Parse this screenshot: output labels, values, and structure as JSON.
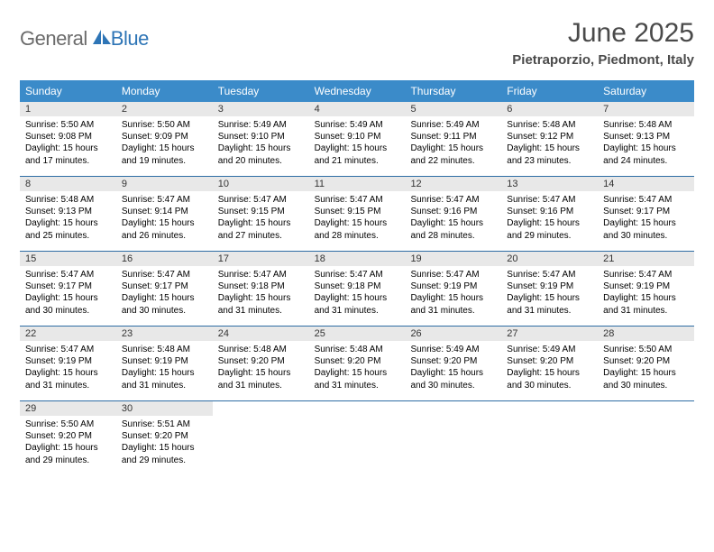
{
  "logo": {
    "general": "General",
    "blue": "Blue"
  },
  "title": "June 2025",
  "location": "Pietraporzio, Piedmont, Italy",
  "weekdays": [
    "Sunday",
    "Monday",
    "Tuesday",
    "Wednesday",
    "Thursday",
    "Friday",
    "Saturday"
  ],
  "colors": {
    "header_bar": "#3b8bc9",
    "week_divider": "#2e6da4",
    "daynum_bg": "#e8e8e8",
    "logo_gray": "#6b6b6b",
    "logo_blue": "#2e75b6",
    "title_color": "#4a4a4a"
  },
  "weeks": [
    [
      {
        "n": "1",
        "sunrise": "5:50 AM",
        "sunset": "9:08 PM",
        "daylight": "15 hours and 17 minutes."
      },
      {
        "n": "2",
        "sunrise": "5:50 AM",
        "sunset": "9:09 PM",
        "daylight": "15 hours and 19 minutes."
      },
      {
        "n": "3",
        "sunrise": "5:49 AM",
        "sunset": "9:10 PM",
        "daylight": "15 hours and 20 minutes."
      },
      {
        "n": "4",
        "sunrise": "5:49 AM",
        "sunset": "9:10 PM",
        "daylight": "15 hours and 21 minutes."
      },
      {
        "n": "5",
        "sunrise": "5:49 AM",
        "sunset": "9:11 PM",
        "daylight": "15 hours and 22 minutes."
      },
      {
        "n": "6",
        "sunrise": "5:48 AM",
        "sunset": "9:12 PM",
        "daylight": "15 hours and 23 minutes."
      },
      {
        "n": "7",
        "sunrise": "5:48 AM",
        "sunset": "9:13 PM",
        "daylight": "15 hours and 24 minutes."
      }
    ],
    [
      {
        "n": "8",
        "sunrise": "5:48 AM",
        "sunset": "9:13 PM",
        "daylight": "15 hours and 25 minutes."
      },
      {
        "n": "9",
        "sunrise": "5:47 AM",
        "sunset": "9:14 PM",
        "daylight": "15 hours and 26 minutes."
      },
      {
        "n": "10",
        "sunrise": "5:47 AM",
        "sunset": "9:15 PM",
        "daylight": "15 hours and 27 minutes."
      },
      {
        "n": "11",
        "sunrise": "5:47 AM",
        "sunset": "9:15 PM",
        "daylight": "15 hours and 28 minutes."
      },
      {
        "n": "12",
        "sunrise": "5:47 AM",
        "sunset": "9:16 PM",
        "daylight": "15 hours and 28 minutes."
      },
      {
        "n": "13",
        "sunrise": "5:47 AM",
        "sunset": "9:16 PM",
        "daylight": "15 hours and 29 minutes."
      },
      {
        "n": "14",
        "sunrise": "5:47 AM",
        "sunset": "9:17 PM",
        "daylight": "15 hours and 30 minutes."
      }
    ],
    [
      {
        "n": "15",
        "sunrise": "5:47 AM",
        "sunset": "9:17 PM",
        "daylight": "15 hours and 30 minutes."
      },
      {
        "n": "16",
        "sunrise": "5:47 AM",
        "sunset": "9:17 PM",
        "daylight": "15 hours and 30 minutes."
      },
      {
        "n": "17",
        "sunrise": "5:47 AM",
        "sunset": "9:18 PM",
        "daylight": "15 hours and 31 minutes."
      },
      {
        "n": "18",
        "sunrise": "5:47 AM",
        "sunset": "9:18 PM",
        "daylight": "15 hours and 31 minutes."
      },
      {
        "n": "19",
        "sunrise": "5:47 AM",
        "sunset": "9:19 PM",
        "daylight": "15 hours and 31 minutes."
      },
      {
        "n": "20",
        "sunrise": "5:47 AM",
        "sunset": "9:19 PM",
        "daylight": "15 hours and 31 minutes."
      },
      {
        "n": "21",
        "sunrise": "5:47 AM",
        "sunset": "9:19 PM",
        "daylight": "15 hours and 31 minutes."
      }
    ],
    [
      {
        "n": "22",
        "sunrise": "5:47 AM",
        "sunset": "9:19 PM",
        "daylight": "15 hours and 31 minutes."
      },
      {
        "n": "23",
        "sunrise": "5:48 AM",
        "sunset": "9:19 PM",
        "daylight": "15 hours and 31 minutes."
      },
      {
        "n": "24",
        "sunrise": "5:48 AM",
        "sunset": "9:20 PM",
        "daylight": "15 hours and 31 minutes."
      },
      {
        "n": "25",
        "sunrise": "5:48 AM",
        "sunset": "9:20 PM",
        "daylight": "15 hours and 31 minutes."
      },
      {
        "n": "26",
        "sunrise": "5:49 AM",
        "sunset": "9:20 PM",
        "daylight": "15 hours and 30 minutes."
      },
      {
        "n": "27",
        "sunrise": "5:49 AM",
        "sunset": "9:20 PM",
        "daylight": "15 hours and 30 minutes."
      },
      {
        "n": "28",
        "sunrise": "5:50 AM",
        "sunset": "9:20 PM",
        "daylight": "15 hours and 30 minutes."
      }
    ],
    [
      {
        "n": "29",
        "sunrise": "5:50 AM",
        "sunset": "9:20 PM",
        "daylight": "15 hours and 29 minutes."
      },
      {
        "n": "30",
        "sunrise": "5:51 AM",
        "sunset": "9:20 PM",
        "daylight": "15 hours and 29 minutes."
      },
      {
        "empty": true
      },
      {
        "empty": true
      },
      {
        "empty": true
      },
      {
        "empty": true
      },
      {
        "empty": true
      }
    ]
  ],
  "labels": {
    "sunrise": "Sunrise: ",
    "sunset": "Sunset: ",
    "daylight": "Daylight: "
  }
}
